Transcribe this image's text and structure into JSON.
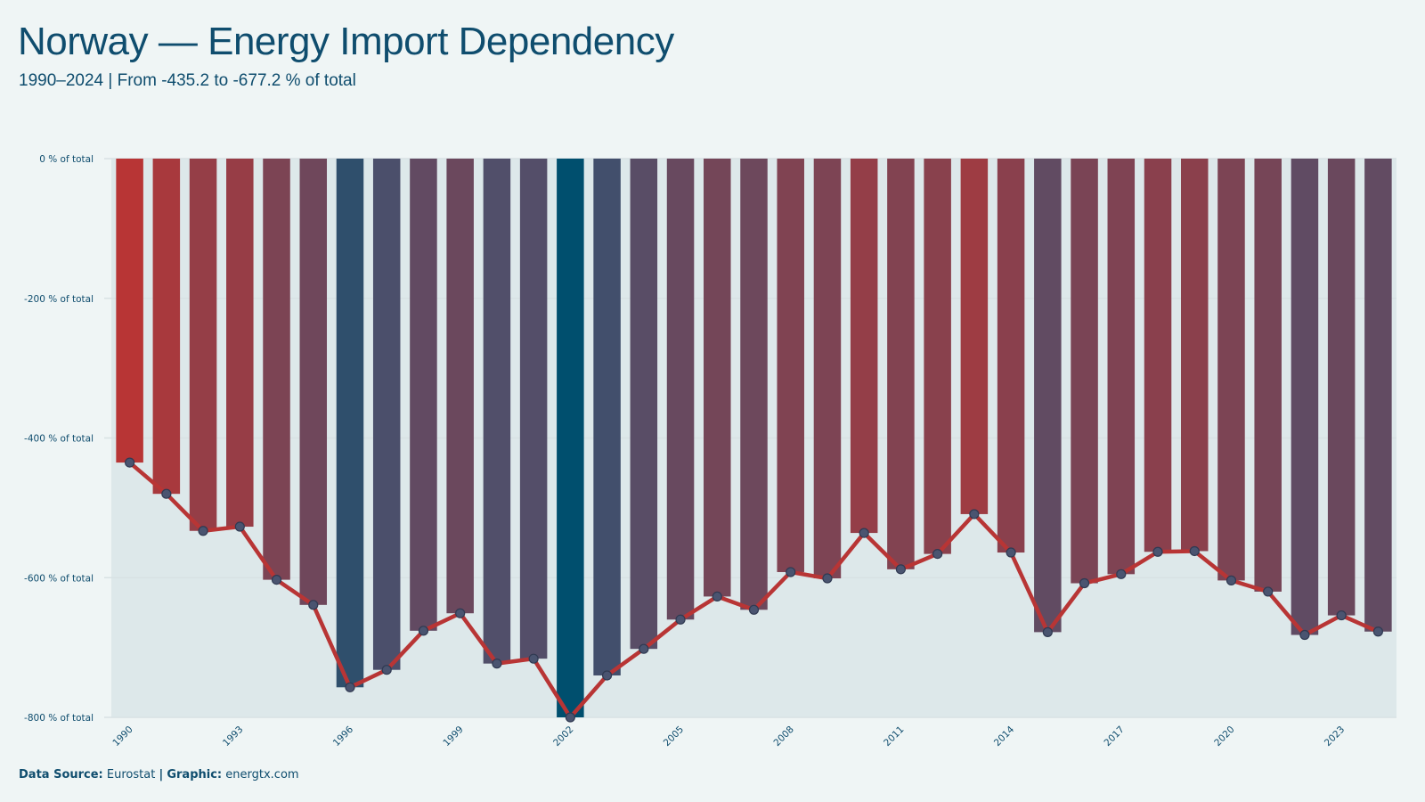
{
  "title": "Norway — Energy Import Dependency",
  "subtitle": "1990–2024 | From -435.2 to -677.2 % of total",
  "footer": {
    "source_label": "Data Source:",
    "source_value": "Eurostat",
    "separator": "|",
    "graphic_label": "Graphic:",
    "graphic_value": "energtx.com"
  },
  "chart_data": {
    "type": "bar",
    "overlay": "line",
    "categories": [
      "1990",
      "1991",
      "1992",
      "1993",
      "1994",
      "1995",
      "1996",
      "1997",
      "1998",
      "1999",
      "2000",
      "2001",
      "2002",
      "2003",
      "2004",
      "2005",
      "2006",
      "2007",
      "2008",
      "2009",
      "2010",
      "2011",
      "2012",
      "2013",
      "2014",
      "2015",
      "2016",
      "2017",
      "2018",
      "2019",
      "2020",
      "2021",
      "2022",
      "2023",
      "2024"
    ],
    "x_tick_labels": [
      "1990",
      "1993",
      "1996",
      "1999",
      "2002",
      "2005",
      "2008",
      "2011",
      "2014",
      "2017",
      "2020",
      "2023"
    ],
    "series": [
      {
        "values": [
          -435.2,
          -480,
          -533,
          -527,
          -603,
          -639,
          -757,
          -732,
          -676,
          -651,
          -723,
          -716,
          -800,
          -740,
          -702,
          -660,
          -627,
          -646,
          -592,
          -601,
          -536,
          -588,
          -566,
          -509,
          -564,
          -678,
          -608,
          -595,
          -563,
          -562,
          -604,
          -620,
          -682,
          -654,
          -677.2
        ]
      }
    ],
    "y_ticks": [
      0,
      -200,
      -400,
      -600,
      -800
    ],
    "y_tick_suffix": " % of total",
    "ylim": [
      -800,
      0
    ],
    "grid": true,
    "colors": {
      "bar_low": "#b83535",
      "bar_mid": "#504f6b",
      "bar_high": "#004f6e",
      "line": "#b83535",
      "marker_fill": "#4a5470",
      "marker_stroke": "#303a52",
      "grid": "#d8e2e4",
      "tick_text": "#0f4d6e",
      "plot_bg": "#dde8ea"
    }
  }
}
